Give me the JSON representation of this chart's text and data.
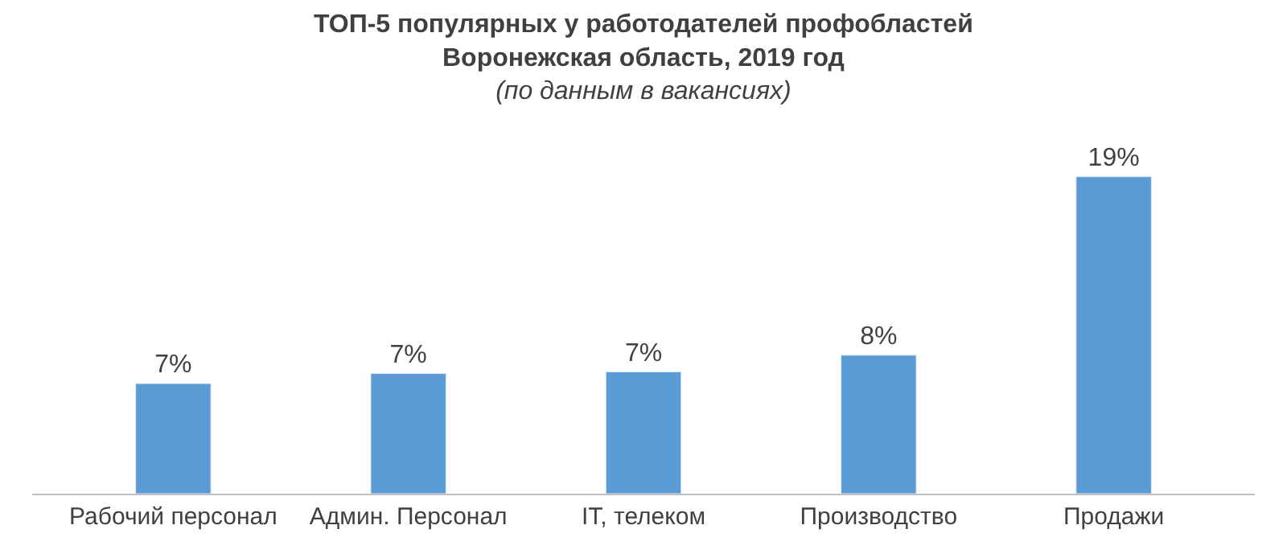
{
  "chart_data": {
    "type": "bar",
    "title": "ТОП-5 популярных у работодателей профобластей\nВоронежская область, 2019 год",
    "subtitle": "(по данным в вакансиях)",
    "categories": [
      "Рабочий персонал",
      "Админ. Персонал",
      "IT, телеком",
      "Производство",
      "Продажи"
    ],
    "values": [
      6.6,
      7.2,
      7.3,
      8.3,
      19
    ],
    "value_labels": [
      "7%",
      "7%",
      "7%",
      "8%",
      "19%"
    ],
    "color": "#5b9bd5"
  }
}
